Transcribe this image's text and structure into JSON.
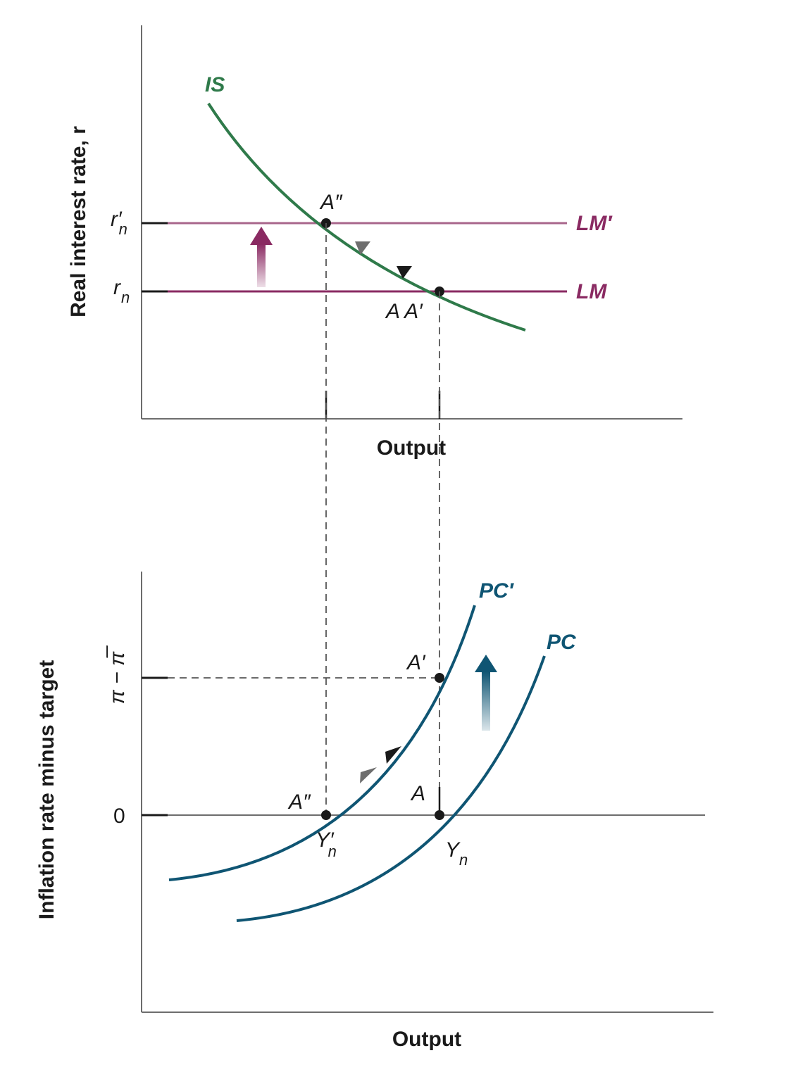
{
  "colors": {
    "axis": "#6d6d6d",
    "text": "#1a1a1a",
    "is_curve": "#2f7a4a",
    "lm": "#8a2a62",
    "lm_prime": "#a8668b",
    "pc_curve": "#0f5573",
    "dashed": "#555555",
    "arrowhead_dark": "#1a1a1a",
    "arrowhead_gray": "#6e6e6e"
  },
  "top_panel": {
    "y_axis_title": "Real interest rate, r",
    "x_axis_title": "Output",
    "curves": {
      "is": "IS",
      "lm": "LM",
      "lm_prime": "LM′"
    },
    "y_ticks": {
      "rn_prime": "r′",
      "rn_prime_sub": "n",
      "rn": "r",
      "rn_sub": "n"
    },
    "points": {
      "a_double_prime": "A″",
      "a_a_prime": "A A′"
    }
  },
  "bottom_panel": {
    "y_axis_title": "Inflation rate minus target",
    "x_axis_title": "Output",
    "curves": {
      "pc": "PC",
      "pc_prime": "PC′"
    },
    "y_ticks": {
      "gap": "π − π̅",
      "zero": "0"
    },
    "x_ticks": {
      "yn_prime": "Y′",
      "yn_prime_sub": "n",
      "yn": "Y",
      "yn_sub": "n"
    },
    "points": {
      "a_prime": "A′",
      "a_double_prime": "A″",
      "a": "A"
    }
  }
}
